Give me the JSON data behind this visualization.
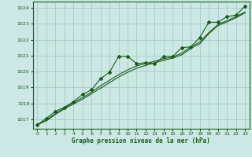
{
  "bg_color": "#cce8e4",
  "grid_color": "#aacfca",
  "line_color": "#1a5c1a",
  "xlabel": "Graphe pression niveau de la mer (hPa)",
  "ylim": [
    1016.4,
    1024.4
  ],
  "xlim": [
    -0.5,
    23.5
  ],
  "yticks": [
    1017,
    1018,
    1019,
    1020,
    1021,
    1022,
    1023,
    1024
  ],
  "xticks": [
    0,
    1,
    2,
    3,
    4,
    5,
    6,
    7,
    8,
    9,
    10,
    11,
    12,
    13,
    14,
    15,
    16,
    17,
    18,
    19,
    20,
    21,
    22,
    23
  ],
  "series1_x": [
    0,
    1,
    2,
    3,
    4,
    5,
    6,
    7,
    8,
    9,
    10,
    11,
    12,
    13,
    14,
    15,
    16,
    17,
    18,
    19,
    20,
    21,
    22,
    23
  ],
  "series1_y": [
    1016.65,
    1017.05,
    1017.5,
    1017.75,
    1018.1,
    1018.55,
    1018.85,
    1019.55,
    1019.95,
    1020.95,
    1020.95,
    1020.5,
    1020.55,
    1020.5,
    1020.95,
    1020.95,
    1021.5,
    1021.55,
    1022.15,
    1023.1,
    1023.1,
    1023.45,
    1023.55,
    1024.1
  ],
  "series2_x": [
    0,
    1,
    2,
    3,
    4,
    5,
    6,
    7,
    8,
    9,
    10,
    11,
    12,
    13,
    14,
    15,
    16,
    17,
    18,
    19,
    20,
    21,
    22,
    23
  ],
  "series2_y": [
    1016.65,
    1016.95,
    1017.35,
    1017.7,
    1018.05,
    1018.35,
    1018.7,
    1019.1,
    1019.45,
    1019.8,
    1020.1,
    1020.35,
    1020.5,
    1020.65,
    1020.8,
    1020.92,
    1021.15,
    1021.55,
    1021.85,
    1022.45,
    1022.95,
    1023.2,
    1023.45,
    1023.75
  ],
  "series3_x": [
    0,
    1,
    2,
    3,
    4,
    5,
    6,
    7,
    8,
    9,
    10,
    11,
    12,
    13,
    14,
    15,
    16,
    17,
    18,
    19,
    20,
    21,
    22,
    23
  ],
  "series3_y": [
    1016.65,
    1016.9,
    1017.3,
    1017.65,
    1017.95,
    1018.25,
    1018.6,
    1018.95,
    1019.3,
    1019.65,
    1019.95,
    1020.2,
    1020.38,
    1020.55,
    1020.7,
    1020.85,
    1021.05,
    1021.45,
    1021.75,
    1022.38,
    1022.88,
    1023.12,
    1023.38,
    1023.68
  ]
}
